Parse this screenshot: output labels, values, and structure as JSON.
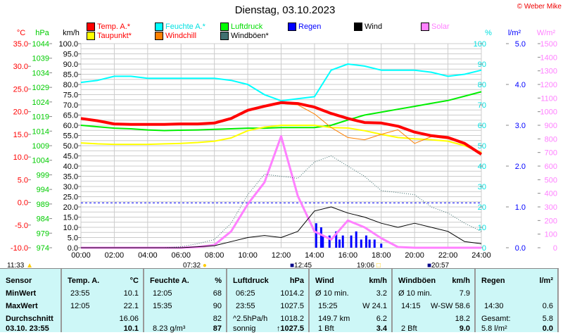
{
  "header": {
    "title": "Dienstag, 03.10.2023",
    "copyright": "© Weber Mike"
  },
  "legend": [
    {
      "label": "Temp. A.*",
      "color": "#ff0000",
      "text_color": "#ff0000"
    },
    {
      "label": "Feuchte A.*",
      "color": "#00ffff",
      "text_color": "#00e0e0"
    },
    {
      "label": "Luftdruck",
      "color": "#00ff00",
      "text_color": "#00dd00"
    },
    {
      "label": "Regen",
      "color": "#0000ff",
      "text_color": "#0000ff"
    },
    {
      "label": "Wind",
      "color": "#000000",
      "text_color": "#000000"
    },
    {
      "label": "Solar",
      "color": "#ff80ff",
      "text_color": "#ff80ff"
    },
    {
      "label": "Taupunkt*",
      "color": "#ffff00",
      "text_color": "#ff0000"
    },
    {
      "label": "Windchill",
      "color": "#ff8000",
      "text_color": "#ff0000"
    },
    {
      "label": "Windböen*",
      "color": "#407070",
      "text_color": "#000000"
    }
  ],
  "chart_data": {
    "type": "line",
    "x_hours": [
      0,
      1,
      2,
      3,
      4,
      5,
      6,
      7,
      8,
      9,
      10,
      11,
      12,
      13,
      14,
      15,
      16,
      17,
      18,
      19,
      20,
      21,
      22,
      23,
      24
    ],
    "x_tick_labels": [
      "00:00",
      "02:00",
      "04:00",
      "06:00",
      "08:00",
      "10:00",
      "12:00",
      "14:00",
      "16:00",
      "18:00",
      "20:00",
      "22:00",
      "24:00"
    ],
    "axes": {
      "temp": {
        "unit": "°C",
        "range": [
          -10,
          35
        ],
        "step": 5,
        "color": "#ff0000"
      },
      "pressure": {
        "unit": "hPa",
        "range": [
          974,
          1044
        ],
        "step": 5,
        "color": "#00cc00"
      },
      "speed": {
        "unit": "km/h",
        "range": [
          0,
          100
        ],
        "step": 5,
        "color": "#000000"
      },
      "humidity": {
        "unit": "%",
        "range": [
          0,
          100
        ],
        "step": 10,
        "color": "#00e0e0"
      },
      "rain": {
        "unit": "l/m²",
        "range": [
          0,
          5
        ],
        "step": 1,
        "color": "#0000ff"
      },
      "solar": {
        "unit": "W/m²",
        "range": [
          0,
          1500
        ],
        "step": 100,
        "color": "#ff80ff"
      }
    },
    "series": [
      {
        "name": "Temp. A.",
        "axis": "temp",
        "color": "#ff0000",
        "width": 4,
        "values": [
          18.5,
          18,
          17.3,
          17.2,
          17.2,
          17.2,
          17.3,
          17.3,
          17.5,
          18.5,
          20.3,
          21.2,
          22,
          21.8,
          21,
          19.6,
          18.5,
          17.6,
          17.5,
          16.8,
          15.5,
          14.7,
          14.3,
          13,
          10.6
        ]
      },
      {
        "name": "Feuchte A.",
        "axis": "humidity",
        "color": "#00ffff",
        "width": 2,
        "values": [
          81,
          82,
          84,
          84,
          83,
          83,
          83,
          83,
          83,
          82,
          80,
          75,
          72,
          73,
          74,
          87,
          90,
          89,
          87,
          87,
          87,
          86,
          84,
          85,
          87
        ]
      },
      {
        "name": "Luftdruck",
        "axis": "pressure",
        "color": "#00ee00",
        "width": 2,
        "values": [
          1016,
          1015.5,
          1015,
          1014.8,
          1014.4,
          1014.2,
          1014.3,
          1014.4,
          1014.6,
          1014.8,
          1015,
          1015,
          1015.2,
          1015.2,
          1015.2,
          1016,
          1017.8,
          1019.5,
          1020.5,
          1021.5,
          1022.5,
          1023.5,
          1024.5,
          1026,
          1027.5
        ]
      },
      {
        "name": "Taupunkt",
        "axis": "temp",
        "color": "#ffff00",
        "width": 2,
        "values": [
          13.1,
          12.9,
          12.8,
          12.8,
          12.8,
          12.9,
          13,
          13.2,
          13.5,
          14.2,
          15.8,
          16.6,
          17,
          17,
          17,
          16.5,
          16.4,
          15.8,
          15,
          14.3,
          14,
          13.8,
          13.5,
          12.5,
          11
        ]
      },
      {
        "name": "Windchill",
        "axis": "temp",
        "color": "#ff8000",
        "width": 1,
        "values": [
          18.5,
          18,
          17.3,
          17.2,
          17.2,
          17.2,
          17.3,
          17.3,
          17.5,
          18.5,
          20.3,
          21.2,
          21.8,
          21.5,
          19.5,
          16.5,
          14.3,
          13.8,
          15,
          16,
          13,
          14.5,
          14,
          13,
          10.6
        ]
      },
      {
        "name": "Windböen",
        "axis": "speed",
        "color": "#407070",
        "width": 1,
        "dotted": true,
        "values": [
          0,
          0,
          0,
          0,
          0,
          0,
          0.5,
          2,
          4,
          12,
          26,
          36,
          35,
          34,
          42,
          45,
          40,
          35,
          28,
          27,
          26,
          20,
          17,
          12,
          8
        ]
      },
      {
        "name": "Wind",
        "axis": "speed",
        "color": "#000000",
        "width": 1,
        "values": [
          0,
          0,
          0,
          0,
          0,
          0,
          0,
          0.5,
          1,
          3,
          5,
          6,
          5,
          8,
          18,
          20,
          17,
          15,
          12,
          10,
          12,
          10,
          8,
          3,
          2
        ]
      },
      {
        "name": "Solar",
        "axis": "solar",
        "color": "#ff80ff",
        "width": 3,
        "values": [
          0,
          0,
          0,
          0,
          0,
          0,
          0,
          5,
          20,
          120,
          320,
          480,
          820,
          380,
          120,
          60,
          200,
          150,
          70,
          5,
          0,
          0,
          0,
          0,
          0
        ]
      }
    ],
    "rain_bars": {
      "axis": "rain",
      "color": "#0000ff",
      "hours": [
        14.1,
        14.4,
        14.5,
        14.9,
        15.3,
        15.5,
        15.7,
        16.2,
        16.5,
        16.8,
        17.1,
        17.3,
        17.6,
        18
      ],
      "values": [
        0.6,
        0.5,
        0.3,
        0.3,
        0.4,
        0.2,
        0.3,
        0.3,
        0.4,
        0.2,
        0.3,
        0.2,
        0.2,
        0.1
      ]
    },
    "reference_line": {
      "axis": "speed",
      "value": 22,
      "color": "#0000ff"
    }
  },
  "markers": [
    {
      "time": "11:33",
      "icon": "moon-icon"
    },
    {
      "time": "07:32",
      "icon": "sunrise-icon"
    },
    {
      "time": "12:45",
      "icon": "moonrise-icon"
    },
    {
      "time": "19:06",
      "icon": "sunset-icon"
    },
    {
      "time": "20:57",
      "icon": "moonset-icon"
    }
  ],
  "table": {
    "sensor": [
      "Sensor",
      "MinWert",
      "MaxWert",
      "Durchschnitt",
      "03.10. 23:55"
    ],
    "temp": {
      "head": "Temp. A.",
      "unit": "°C",
      "min_t": "23:55",
      "min": "10.1",
      "max_t": "12:05",
      "max": "22.1",
      "avg": "16.06",
      "cur": "10.1"
    },
    "hum": {
      "head": "Feuchte A.",
      "unit": "%",
      "min_t": "12:05",
      "min": "68",
      "max_t": "15:35",
      "max": "90",
      "avg": "82",
      "abs": "8.23 g/m³",
      "cur": "87"
    },
    "press": {
      "head": "Luftdruck",
      "unit": "hPa",
      "min_t": "06:25",
      "min": "1014.2",
      "max_t": "23:55",
      "max": "1027.5",
      "trend": "^2.5hPa/h",
      "avg": "1018.2",
      "fc": "sonnig",
      "cur": "↑1027.5"
    },
    "wind": {
      "head": "Wind",
      "unit": "km/h",
      "r1l": "Ø 10 min.",
      "r1": "3.2",
      "r2l": "15:25",
      "r2": "W 24.1",
      "r3l": "149.7 km",
      "r3": "6.2",
      "r4l": "1 Bft",
      "r4": "3.4"
    },
    "gust": {
      "head": "Windböen",
      "unit": "km/h",
      "r1l": "Ø 10 min.",
      "r1": "7.9",
      "r2l": "14:15",
      "r2": "W-SW 58.6",
      "r3": "18.2",
      "r4l": "2 Bft",
      "r4": "9.0"
    },
    "rain": {
      "head": "Regen",
      "unit": "l/m²",
      "r2l": "14:30",
      "r2": "0.6",
      "r3l": "Gesamt:",
      "r3": "5.8",
      "r4l": "5.8 l/m²",
      "r4": "0.0"
    }
  }
}
